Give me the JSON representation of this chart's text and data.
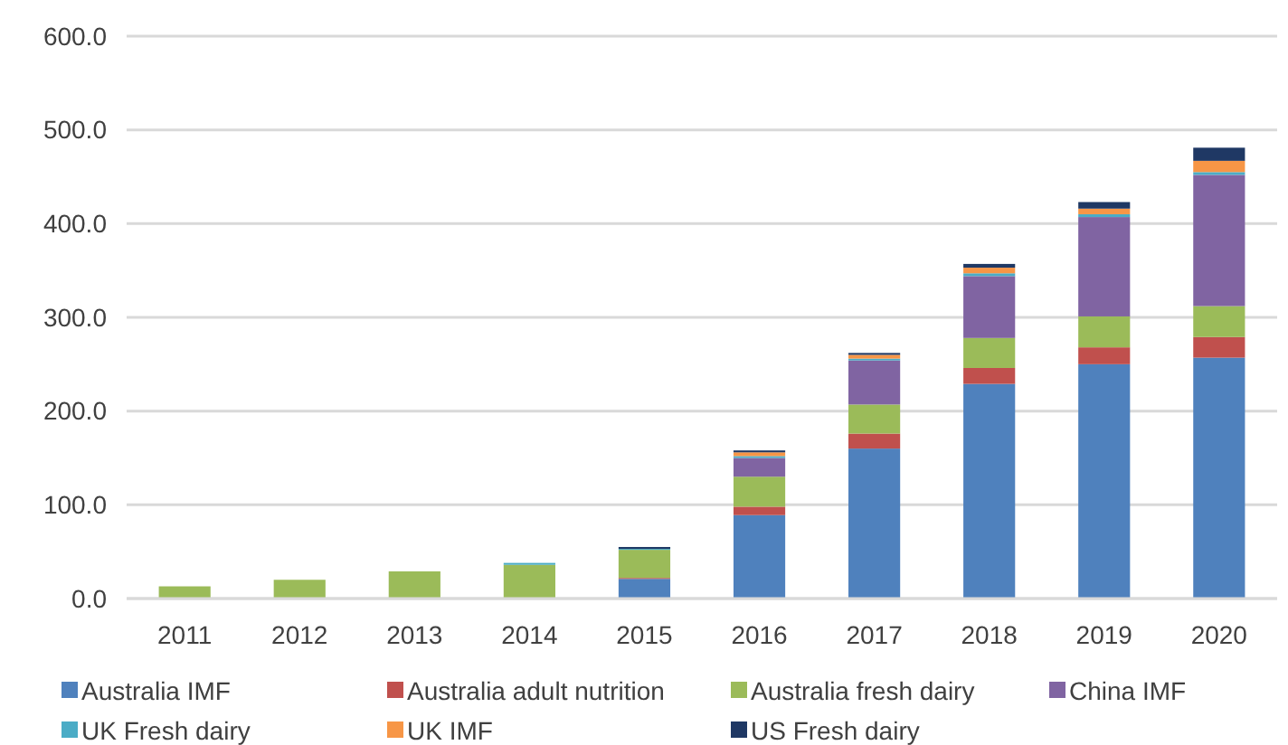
{
  "chart_data": {
    "type": "bar",
    "stacked": true,
    "categories": [
      "2011",
      "2012",
      "2013",
      "2014",
      "2015",
      "2016",
      "2017",
      "2018",
      "2019",
      "2020"
    ],
    "series": [
      {
        "name": "Australia IMF",
        "color": "#4f81bd",
        "values": [
          0,
          0,
          0,
          0,
          21,
          89,
          160,
          229,
          250,
          257
        ]
      },
      {
        "name": "Australia adult nutrition",
        "color": "#c0504d",
        "values": [
          0,
          0,
          0,
          0,
          1,
          9,
          16,
          17,
          18,
          22
        ]
      },
      {
        "name": "Australia fresh dairy",
        "color": "#9bbb59",
        "values": [
          13,
          20,
          29,
          36,
          30,
          32,
          31,
          32,
          33,
          33
        ]
      },
      {
        "name": "China IMF",
        "color": "#8064a2",
        "values": [
          0,
          0,
          0,
          0,
          0,
          20,
          47,
          66,
          106,
          140
        ]
      },
      {
        "name": "UK Fresh dairy",
        "color": "#4bacc6",
        "values": [
          0,
          0,
          0,
          2,
          1,
          2,
          2,
          3,
          3,
          3
        ]
      },
      {
        "name": "UK IMF",
        "color": "#f79646",
        "values": [
          0,
          0,
          0,
          0,
          0,
          4,
          4,
          6,
          6,
          12
        ]
      },
      {
        "name": "US Fresh dairy",
        "color": "#1f3864",
        "values": [
          0,
          0,
          0,
          0,
          2,
          2,
          2,
          4,
          7,
          14
        ]
      }
    ],
    "ylim": [
      0,
      600
    ],
    "yticks": [
      {
        "value": 0,
        "label": "0.0"
      },
      {
        "value": 100,
        "label": "100.0"
      },
      {
        "value": 200,
        "label": "200.0"
      },
      {
        "value": 300,
        "label": "300.0"
      },
      {
        "value": 400,
        "label": "400.0"
      },
      {
        "value": 500,
        "label": "500.0"
      },
      {
        "value": 600,
        "label": "600.0"
      }
    ],
    "grid": "y",
    "legend": "bottom"
  }
}
